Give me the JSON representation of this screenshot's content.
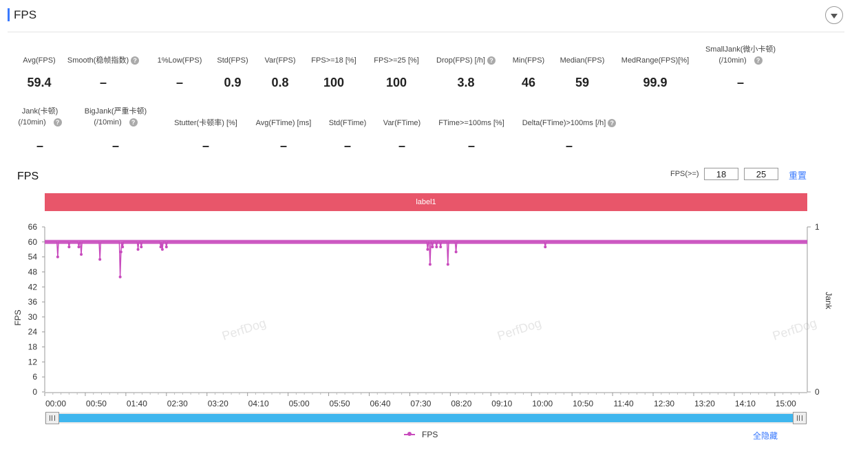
{
  "header": {
    "title": "FPS"
  },
  "metrics_row1": [
    {
      "label": "Avg(FPS)",
      "value": "59.4",
      "help": false
    },
    {
      "label": "Smooth(稳帧指数)",
      "value": "–",
      "help": true
    },
    {
      "label": "1%Low(FPS)",
      "value": "–",
      "help": false
    },
    {
      "label": "Std(FPS)",
      "value": "0.9",
      "help": false
    },
    {
      "label": "Var(FPS)",
      "value": "0.8",
      "help": false
    },
    {
      "label": "FPS>=18 [%]",
      "value": "100",
      "help": false
    },
    {
      "label": "FPS>=25 [%]",
      "value": "100",
      "help": false
    },
    {
      "label": "Drop(FPS) [/h]",
      "value": "3.8",
      "help": true
    },
    {
      "label": "Min(FPS)",
      "value": "46",
      "help": false
    },
    {
      "label": "Median(FPS)",
      "value": "59",
      "help": false
    },
    {
      "label": "MedRange(FPS)[%]",
      "value": "99.9",
      "help": false
    },
    {
      "label": "SmallJank(微小卡顿)",
      "label2": "(/10min)",
      "value": "–",
      "help": true
    }
  ],
  "metrics_row2": [
    {
      "label": "Jank(卡顿)",
      "label2": "(/10min)",
      "value": "–",
      "help": true
    },
    {
      "label": "BigJank(严重卡顿)",
      "label2": "(/10min)",
      "value": "–",
      "help": true
    },
    {
      "label": "Stutter(卡顿率) [%]",
      "value": "–",
      "help": false
    },
    {
      "label": "Avg(FTime) [ms]",
      "value": "–",
      "help": false
    },
    {
      "label": "Std(FTime)",
      "value": "–",
      "help": false
    },
    {
      "label": "Var(FTime)",
      "value": "–",
      "help": false
    },
    {
      "label": "FTime>=100ms [%]",
      "value": "–",
      "help": false
    },
    {
      "label": "Delta(FTime)>100ms [/h]",
      "value": "–",
      "help": true
    }
  ],
  "chart_header": {
    "title": "FPS",
    "threshold_label": "FPS(>=)",
    "threshold1": "18",
    "threshold2": "25",
    "reset_label": "重置"
  },
  "label_band": {
    "text": "label1",
    "color": "#e8566a"
  },
  "watermark": "PerfDog",
  "help_glyph": "?",
  "legend": {
    "series_label": "FPS",
    "hide_all_label": "全隐藏"
  },
  "colors": {
    "accent": "#3a7afe",
    "series": "#c84bbd",
    "slider": "#3fb6ee"
  },
  "chart_data": {
    "type": "line",
    "title": "FPS",
    "ylabel": "FPS",
    "y2label": "Jank",
    "ylim": [
      0,
      66
    ],
    "yticks": [
      0,
      6,
      12,
      18,
      24,
      30,
      36,
      42,
      48,
      54,
      60,
      66
    ],
    "y2ticks": [
      0,
      1
    ],
    "xticks": [
      "00:00",
      "00:50",
      "01:40",
      "02:30",
      "03:20",
      "04:10",
      "05:00",
      "05:50",
      "06:40",
      "07:30",
      "08:20",
      "09:10",
      "10:00",
      "10:50",
      "11:40",
      "12:30",
      "13:20",
      "14:10",
      "15:00"
    ],
    "xlim_seconds": [
      0,
      940
    ],
    "series": [
      {
        "name": "FPS",
        "baseline": 60,
        "dips": [
          {
            "t": 16,
            "fps": 54
          },
          {
            "t": 30,
            "fps": 58
          },
          {
            "t": 42,
            "fps": 58
          },
          {
            "t": 45,
            "fps": 55
          },
          {
            "t": 68,
            "fps": 53
          },
          {
            "t": 93,
            "fps": 46
          },
          {
            "t": 94,
            "fps": 56
          },
          {
            "t": 96,
            "fps": 58
          },
          {
            "t": 115,
            "fps": 57
          },
          {
            "t": 119,
            "fps": 58
          },
          {
            "t": 143,
            "fps": 58
          },
          {
            "t": 145,
            "fps": 57
          },
          {
            "t": 150,
            "fps": 58
          },
          {
            "t": 472,
            "fps": 57
          },
          {
            "t": 475,
            "fps": 51
          },
          {
            "t": 478,
            "fps": 58
          },
          {
            "t": 483,
            "fps": 58
          },
          {
            "t": 488,
            "fps": 58
          },
          {
            "t": 497,
            "fps": 51
          },
          {
            "t": 507,
            "fps": 56
          },
          {
            "t": 617,
            "fps": 58
          }
        ]
      }
    ]
  }
}
